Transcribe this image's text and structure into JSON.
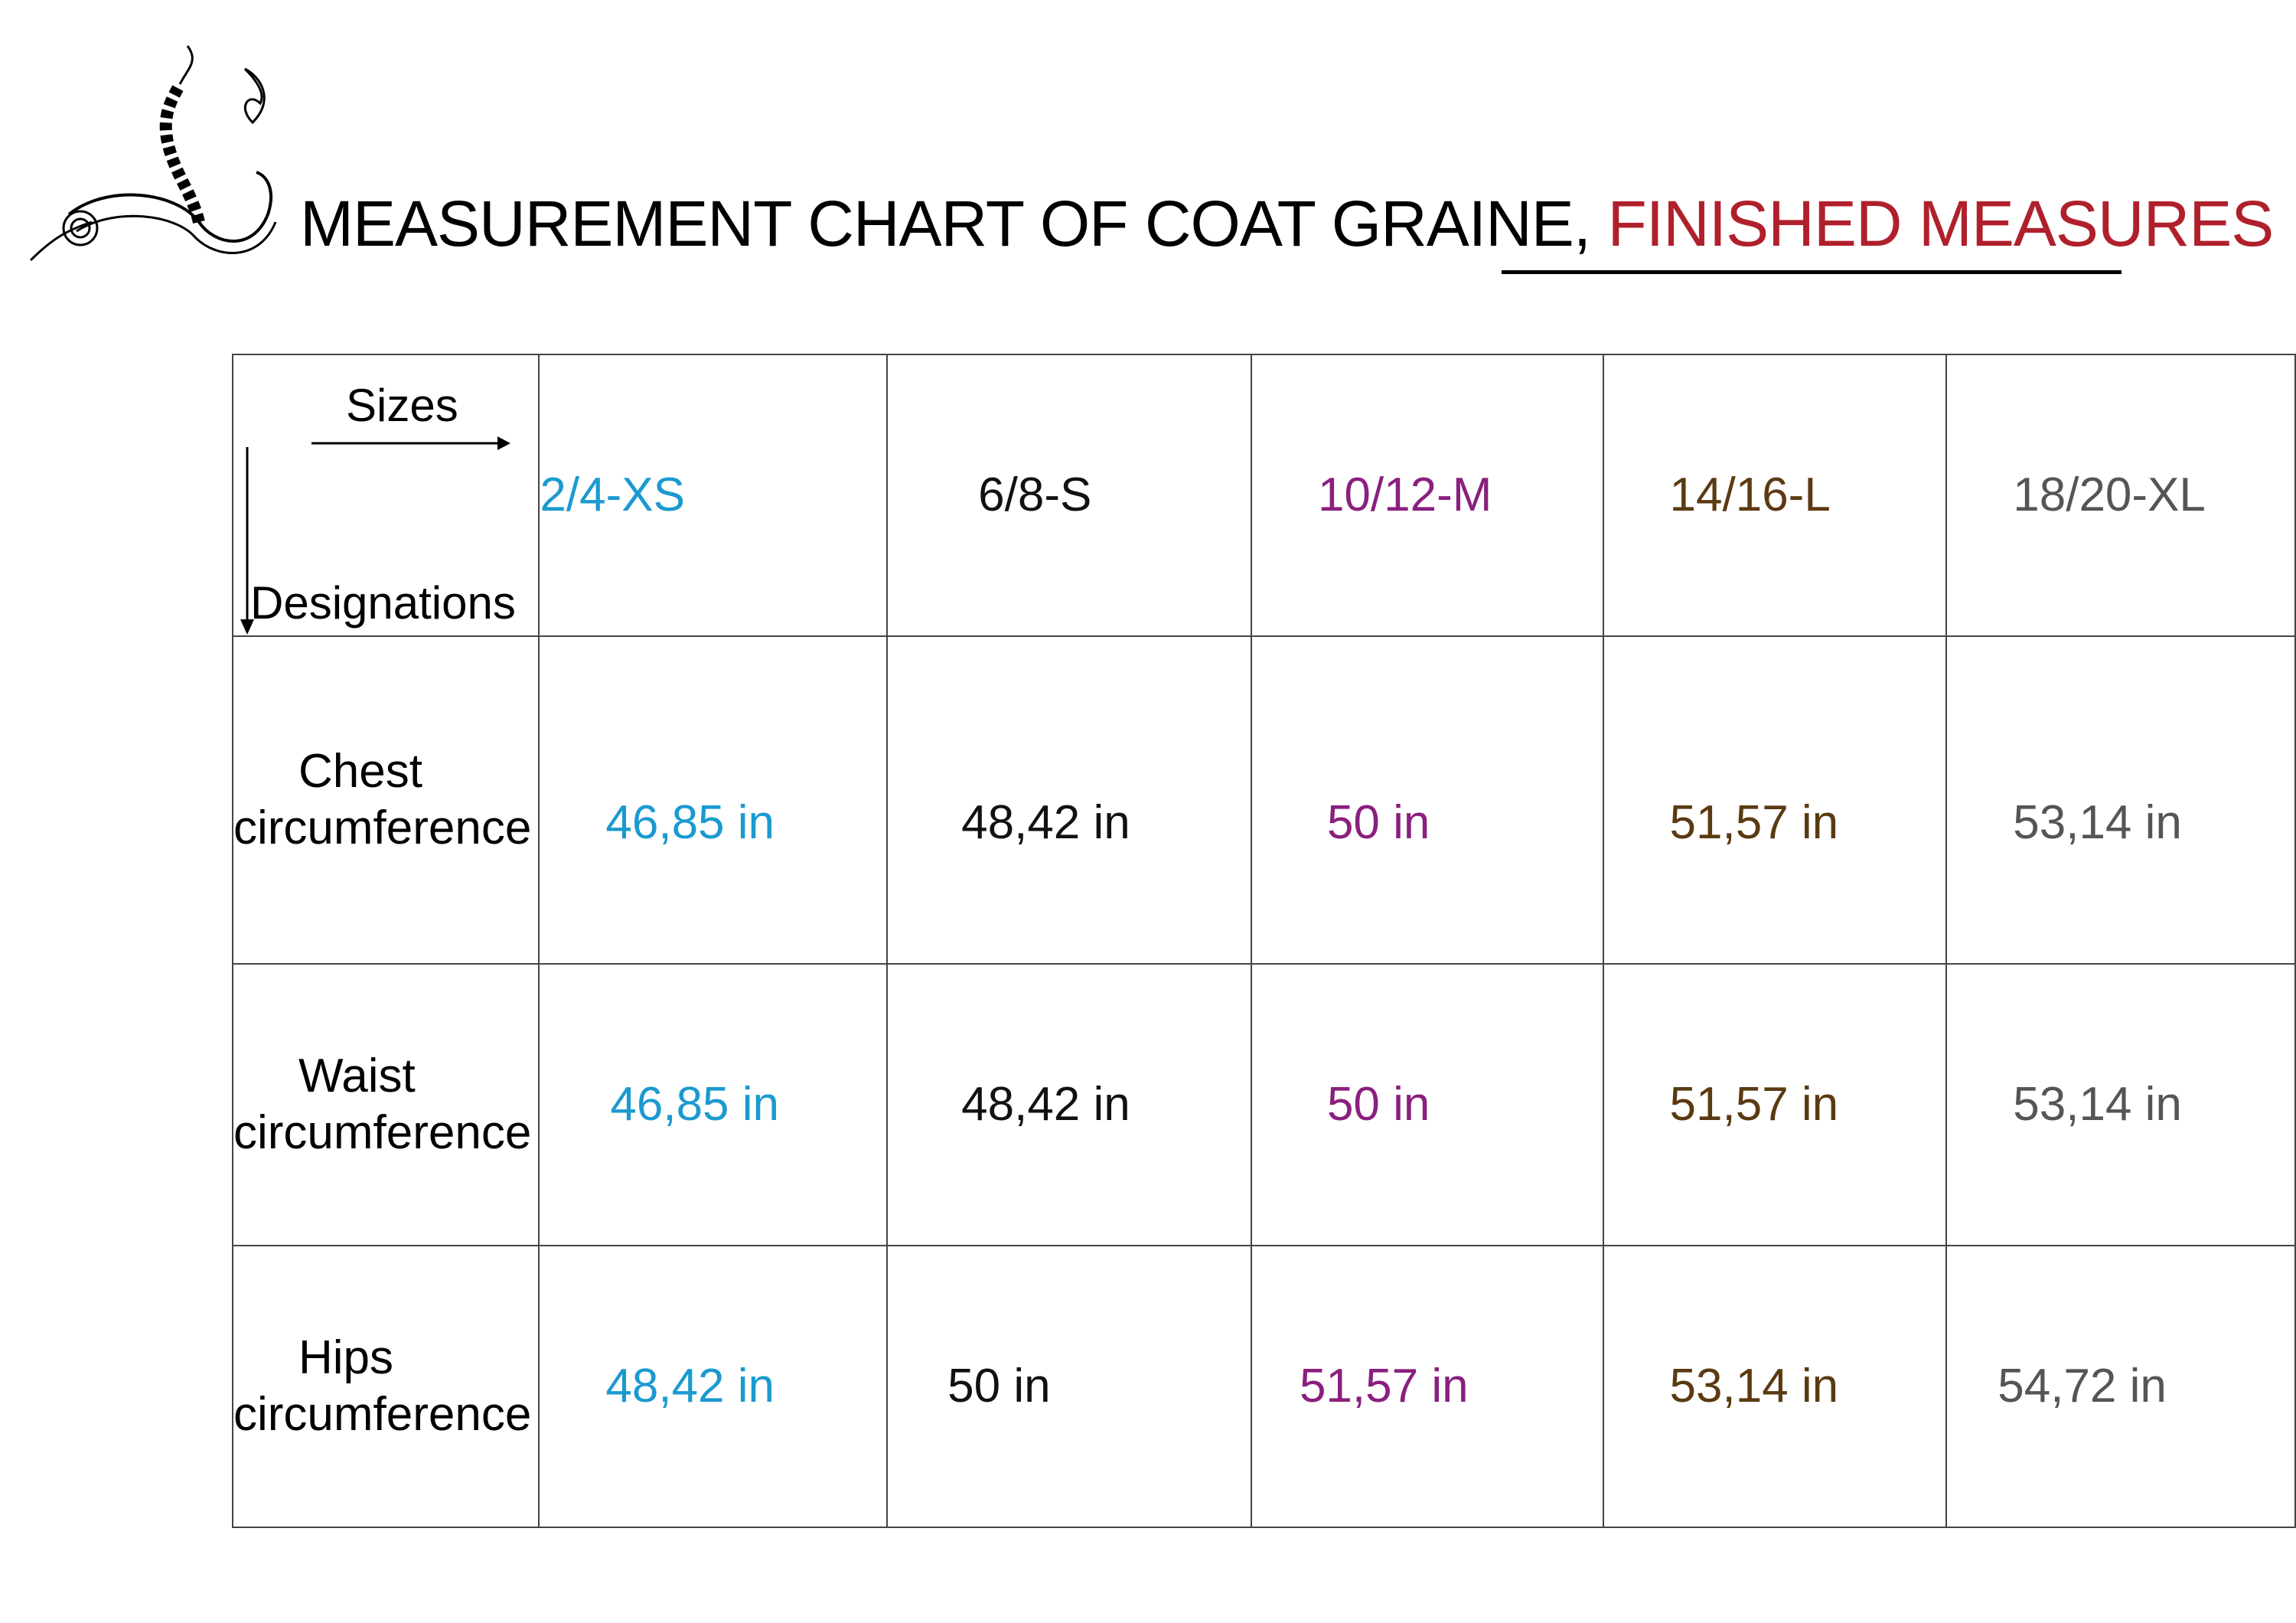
{
  "title": {
    "main": "MEASUREMENT CHART OF COAT GRAINE,",
    "accent": "FINISHED MEASURES"
  },
  "colors": {
    "XS": "#1a9ad0",
    "S": "#111111",
    "M": "#8a1f7e",
    "L": "#5b3a12",
    "XL": "#555555",
    "accent": "#b0202c"
  },
  "header": {
    "sizes_label": "Sizes",
    "designations_label": "Designations",
    "columns": [
      "2/4-XS",
      "6/8-S",
      "10/12-M",
      "14/16-L",
      "18/20-XL"
    ]
  },
  "rows": [
    {
      "label1": "Chest",
      "label2": "circumference",
      "values": [
        "46,85 in",
        "48,42 in",
        "50 in",
        "51,57 in",
        "53,14 in"
      ]
    },
    {
      "label1": "Waist",
      "label2": "circumference",
      "values": [
        "46,85 in",
        "48,42 in",
        "50 in",
        "51,57 in",
        "53,14 in"
      ]
    },
    {
      "label1": "Hips",
      "label2": "circumference",
      "values": [
        "48,42 in",
        "50 in",
        "51,57 in",
        "53,14 in",
        "54,72 in"
      ]
    }
  ]
}
